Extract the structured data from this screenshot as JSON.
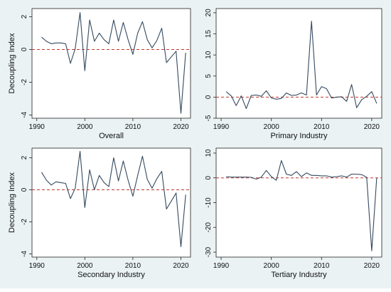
{
  "chart_data": [
    {
      "type": "line",
      "title": "Overall",
      "xlabel": "",
      "ylabel": "Decoupling Index",
      "xlim": [
        1989,
        2022
      ],
      "ylim": [
        -4.2,
        2.5
      ],
      "xticks": [
        1990,
        2000,
        2010,
        2020
      ],
      "yticks": [
        -4,
        -2,
        0,
        2
      ],
      "reference_line": 0,
      "x": [
        1991,
        1992,
        1993,
        1994,
        1995,
        1996,
        1997,
        1998,
        1999,
        2000,
        2001,
        2002,
        2003,
        2004,
        2005,
        2006,
        2007,
        2008,
        2009,
        2010,
        2011,
        2012,
        2013,
        2014,
        2015,
        2016,
        2017,
        2018,
        2019,
        2020,
        2021
      ],
      "values": [
        0.75,
        0.5,
        0.35,
        0.4,
        0.4,
        0.35,
        -0.85,
        0.05,
        2.25,
        -1.3,
        1.8,
        0.5,
        1.0,
        0.6,
        0.35,
        1.8,
        0.5,
        1.65,
        0.6,
        -0.3,
        1.0,
        1.7,
        0.6,
        0.1,
        0.55,
        1.3,
        -0.8,
        -0.45,
        -0.1,
        -3.9,
        -0.2
      ]
    },
    {
      "type": "line",
      "title": "Primary Industry",
      "xlabel": "",
      "ylabel": "",
      "xlim": [
        1989,
        2022
      ],
      "ylim": [
        -5,
        21
      ],
      "xticks": [
        1990,
        2000,
        2010,
        2020
      ],
      "yticks": [
        -5,
        0,
        5,
        10,
        15,
        20
      ],
      "reference_line": 0,
      "x": [
        1991,
        1992,
        1993,
        1994,
        1995,
        1996,
        1997,
        1998,
        1999,
        2000,
        2001,
        2002,
        2003,
        2004,
        2005,
        2006,
        2007,
        2008,
        2009,
        2010,
        2011,
        2012,
        2013,
        2014,
        2015,
        2016,
        2017,
        2018,
        2019,
        2020,
        2021
      ],
      "values": [
        1.3,
        0.3,
        -2.0,
        0.3,
        -2.7,
        0.4,
        0.5,
        0.2,
        1.5,
        -0.2,
        -0.5,
        -0.3,
        1.0,
        0.4,
        0.5,
        1.0,
        0.5,
        18.0,
        0.5,
        2.5,
        2.0,
        -0.2,
        0.0,
        0.1,
        -1.0,
        3.0,
        -2.5,
        -0.6,
        0.2,
        1.3,
        -1.5
      ]
    },
    {
      "type": "line",
      "title": "Secondary Industry",
      "xlabel": "",
      "ylabel": "Decoupling Index",
      "xlim": [
        1989,
        2022
      ],
      "ylim": [
        -4.2,
        2.6
      ],
      "xticks": [
        1990,
        2000,
        2010,
        2020
      ],
      "yticks": [
        -4,
        -2,
        0,
        2
      ],
      "reference_line": 0,
      "x": [
        1991,
        1992,
        1993,
        1994,
        1995,
        1996,
        1997,
        1998,
        1999,
        2000,
        2001,
        2002,
        2003,
        2004,
        2005,
        2006,
        2007,
        2008,
        2009,
        2010,
        2011,
        2012,
        2013,
        2014,
        2015,
        2016,
        2017,
        2018,
        2019,
        2020,
        2021
      ],
      "values": [
        1.1,
        0.6,
        0.3,
        0.5,
        0.45,
        0.4,
        -0.55,
        0.1,
        2.4,
        -1.1,
        1.25,
        0.0,
        0.9,
        0.45,
        0.2,
        2.0,
        0.55,
        1.8,
        0.6,
        -0.4,
        0.9,
        2.1,
        0.65,
        0.1,
        0.7,
        1.15,
        -1.2,
        -0.7,
        -0.2,
        -3.55,
        -0.3
      ]
    },
    {
      "type": "line",
      "title": "Tertiary Industry",
      "xlabel": "",
      "ylabel": "",
      "xlim": [
        1989,
        2022
      ],
      "ylim": [
        -32,
        12
      ],
      "xticks": [
        1990,
        2000,
        2010,
        2020
      ],
      "yticks": [
        -30,
        -20,
        -10,
        0,
        10
      ],
      "reference_line": 0,
      "x": [
        1991,
        1992,
        1993,
        1994,
        1995,
        1996,
        1997,
        1998,
        1999,
        2000,
        2001,
        2002,
        2003,
        2004,
        2005,
        2006,
        2007,
        2008,
        2009,
        2010,
        2011,
        2012,
        2013,
        2014,
        2015,
        2016,
        2017,
        2018,
        2019,
        2020,
        2021
      ],
      "values": [
        0.5,
        0.3,
        0.3,
        0.3,
        0.3,
        0.2,
        -0.5,
        0.3,
        3.0,
        0.5,
        -1.0,
        7.0,
        1.5,
        1.0,
        2.5,
        0.5,
        2.0,
        1.0,
        1.0,
        0.8,
        0.8,
        0.3,
        0.5,
        0.8,
        0.3,
        1.5,
        1.5,
        1.3,
        0.2,
        -29.5,
        0.0
      ]
    }
  ],
  "colors": {
    "line": "#34495e",
    "reference_line": "#c0392b",
    "panel_background": "#ffffff",
    "outer_background": "#eaf2f3"
  }
}
